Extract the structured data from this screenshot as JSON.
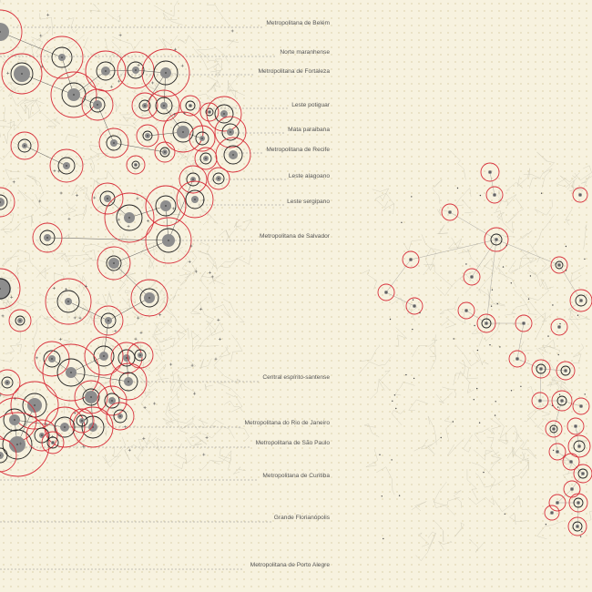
{
  "figure": {
    "type": "network-map",
    "region_labels": [
      "Metropolitana de Belém",
      "Norte maranhense",
      "Metropolitana de Fortaleza",
      "Leste potiguar",
      "Mata paraibana",
      "Metropolitana de Recife",
      "Leste alagoano",
      "Leste sergipano",
      "Metropolitana de Salvador",
      "Central espírito-santense",
      "Metropolitana do Rio de Janeiro",
      "Metropolitana de São Paulo",
      "Metropolitana de Curitiba",
      "Grande Florianópolis",
      "Metropolitana de Porto Alegre"
    ],
    "colors": {
      "background": "#f7f2df",
      "ring_red": "#d8303b",
      "ring_black": "#222222",
      "core_grey": "#8d8d8d",
      "road": "#c9c4b2"
    }
  }
}
